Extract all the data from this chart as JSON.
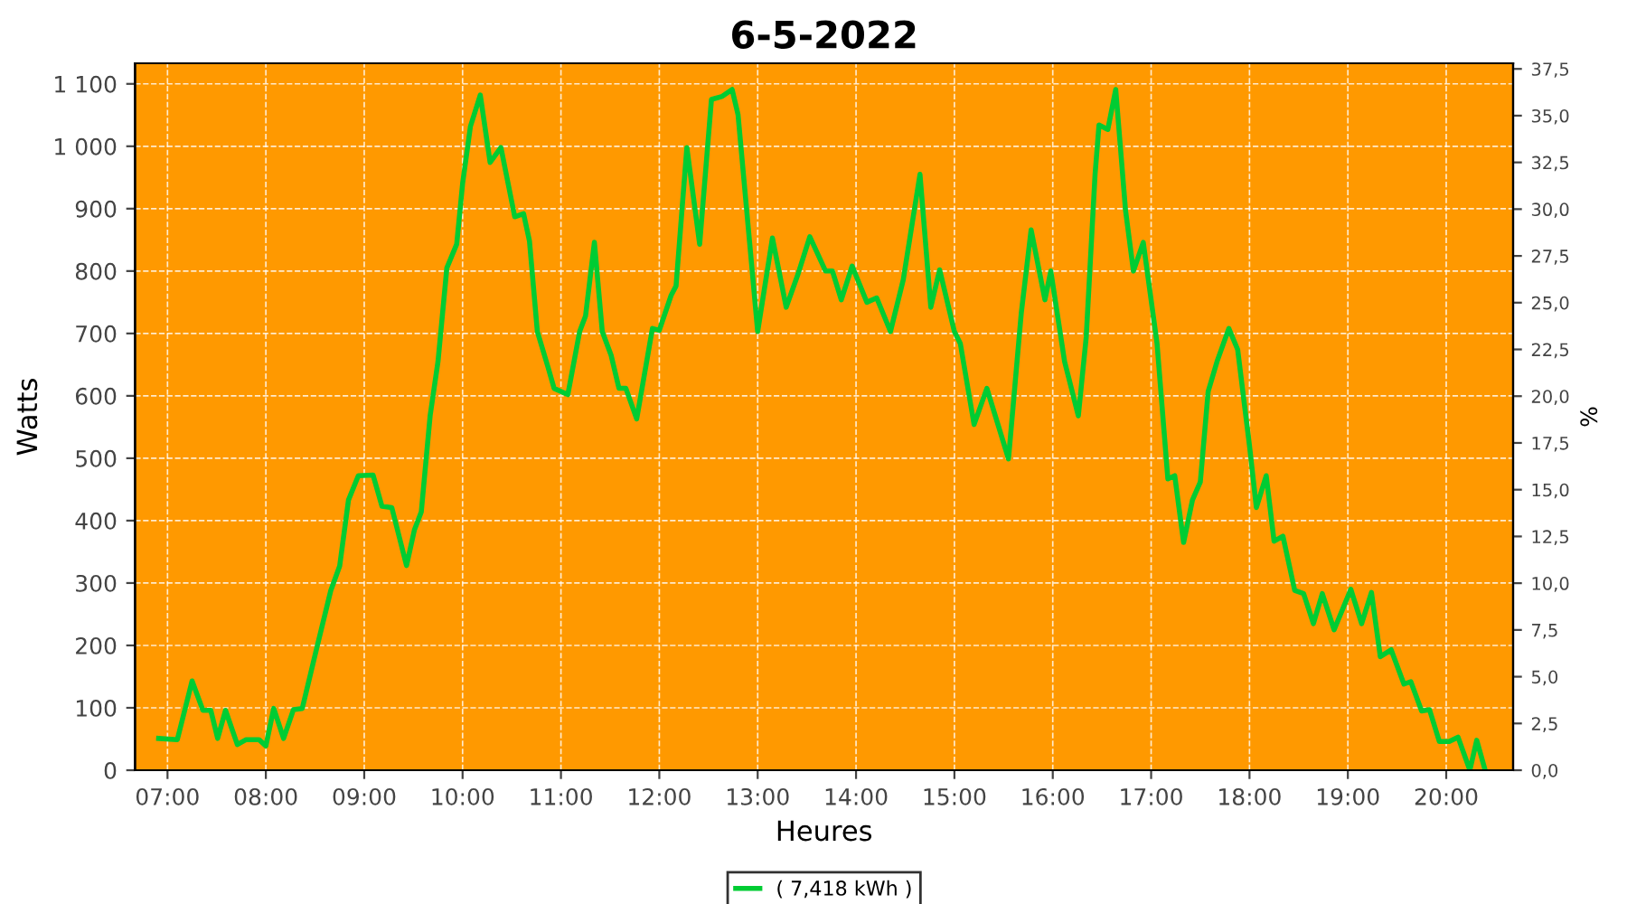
{
  "chart_data": {
    "type": "line",
    "title": "6-5-2022",
    "xlabel": "Heures",
    "ylabel": "Watts",
    "y2label": "%",
    "xlim": [
      6.67,
      20.68
    ],
    "xticks": [
      {
        "value": 7,
        "label": "07:00"
      },
      {
        "value": 8,
        "label": "08:00"
      },
      {
        "value": 9,
        "label": "09:00"
      },
      {
        "value": 10,
        "label": "10:00"
      },
      {
        "value": 11,
        "label": "11:00"
      },
      {
        "value": 12,
        "label": "12:00"
      },
      {
        "value": 13,
        "label": "13:00"
      },
      {
        "value": 14,
        "label": "14:00"
      },
      {
        "value": 15,
        "label": "15:00"
      },
      {
        "value": 16,
        "label": "16:00"
      },
      {
        "value": 17,
        "label": "17:00"
      },
      {
        "value": 18,
        "label": "18:00"
      },
      {
        "value": 19,
        "label": "19:00"
      },
      {
        "value": 20,
        "label": "20:00"
      }
    ],
    "ylim": [
      0,
      1133
    ],
    "yticks": [
      0,
      100,
      200,
      300,
      400,
      500,
      600,
      700,
      800,
      900,
      {
        "value": 1000,
        "label": "1 000"
      },
      {
        "value": 1100,
        "label": "1 100"
      }
    ],
    "y2lim": [
      0,
      37.8
    ],
    "y2ticks": [
      {
        "value": 0,
        "label": "0,0"
      },
      {
        "value": 2.5,
        "label": "2,5"
      },
      {
        "value": 5,
        "label": "5,0"
      },
      {
        "value": 7.5,
        "label": "7,5"
      },
      {
        "value": 10,
        "label": "10,0"
      },
      {
        "value": 12.5,
        "label": "12,5"
      },
      {
        "value": 15,
        "label": "15,0"
      },
      {
        "value": 17.5,
        "label": "17,5"
      },
      {
        "value": 20,
        "label": "20,0"
      },
      {
        "value": 22.5,
        "label": "22,5"
      },
      {
        "value": 25,
        "label": "25,0"
      },
      {
        "value": 27.5,
        "label": "27,5"
      },
      {
        "value": 30,
        "label": "30,0"
      },
      {
        "value": 32.5,
        "label": "32,5"
      },
      {
        "value": 35,
        "label": "35,0"
      },
      {
        "value": 37.5,
        "label": "37,5"
      }
    ],
    "grid": true,
    "legend": "bottom",
    "marker": "none",
    "line_style": "solid",
    "series": [
      {
        "name": "( 7,418 kWh )",
        "color": "#00cc33",
        "x": [
          6.91,
          7.1,
          7.25,
          7.36,
          7.44,
          7.51,
          7.59,
          7.71,
          7.8,
          7.93,
          8.0,
          8.08,
          8.18,
          8.28,
          8.37,
          8.51,
          8.66,
          8.75,
          8.84,
          8.94,
          9.09,
          9.18,
          9.28,
          9.43,
          9.51,
          9.58,
          9.67,
          9.75,
          9.84,
          9.94,
          10.0,
          10.08,
          10.18,
          10.28,
          10.39,
          10.53,
          10.62,
          10.68,
          10.76,
          10.87,
          10.93,
          11.07,
          11.19,
          11.25,
          11.34,
          11.42,
          11.51,
          11.59,
          11.66,
          11.77,
          11.93,
          12.0,
          12.12,
          12.17,
          12.28,
          12.41,
          12.53,
          12.64,
          12.74,
          12.8,
          13.0,
          13.15,
          13.29,
          13.41,
          13.53,
          13.69,
          13.76,
          13.85,
          13.96,
          14.11,
          14.21,
          14.35,
          14.48,
          14.65,
          14.76,
          14.85,
          15.0,
          15.06,
          15.2,
          15.33,
          15.55,
          15.68,
          15.78,
          15.92,
          15.98,
          16.12,
          16.26,
          16.34,
          16.43,
          16.47,
          16.56,
          16.64,
          16.74,
          16.82,
          16.92,
          17.06,
          17.17,
          17.24,
          17.33,
          17.42,
          17.5,
          17.58,
          17.67,
          17.79,
          17.88,
          18.0,
          18.07,
          18.17,
          18.25,
          18.34,
          18.46,
          18.55,
          18.65,
          18.74,
          18.86,
          19.03,
          19.14,
          19.24,
          19.33,
          19.44,
          19.57,
          19.64,
          19.75,
          19.83,
          19.93,
          20.03,
          20.12,
          20.24,
          20.31,
          20.39
        ],
        "values": [
          51,
          49,
          143,
          96,
          96,
          51,
          96,
          41,
          49,
          49,
          39,
          99,
          51,
          97,
          99,
          191,
          288,
          327,
          433,
          472,
          473,
          423,
          421,
          328,
          385,
          414,
          568,
          655,
          805,
          843,
          940,
          1032,
          1082,
          974,
          998,
          887,
          892,
          848,
          703,
          645,
          612,
          602,
          703,
          728,
          846,
          703,
          665,
          612,
          612,
          563,
          708,
          705,
          761,
          776,
          998,
          843,
          1075,
          1080,
          1091,
          1051,
          703,
          853,
          742,
          795,
          855,
          800,
          800,
          754,
          808,
          750,
          757,
          703,
          786,
          955,
          742,
          802,
          703,
          684,
          554,
          612,
          499,
          733,
          866,
          754,
          800,
          655,
          568,
          694,
          955,
          1034,
          1027,
          1091,
          897,
          800,
          846,
          684,
          467,
          472,
          365,
          433,
          462,
          607,
          655,
          708,
          674,
          520,
          421,
          472,
          367,
          375,
          288,
          283,
          235,
          283,
          225,
          290,
          235,
          285,
          182,
          193,
          138,
          142,
          95,
          97,
          46,
          46,
          53,
          0,
          48,
          3
        ]
      }
    ]
  }
}
